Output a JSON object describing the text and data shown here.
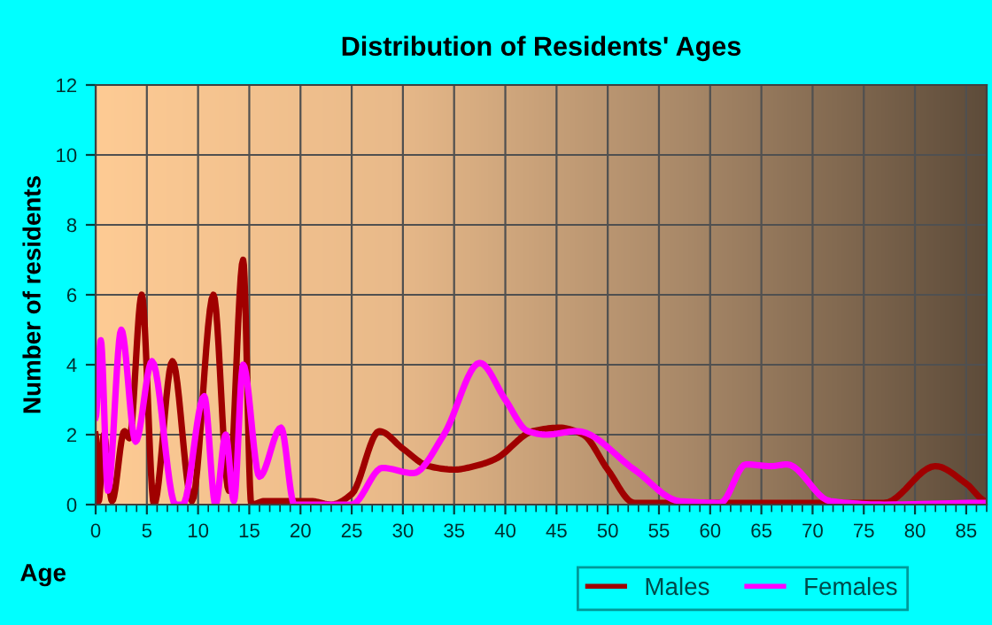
{
  "chart_data": {
    "type": "line",
    "title": "Distribution of Residents' Ages",
    "xlabel": "Age",
    "ylabel": "Number of residents",
    "xlim": [
      0,
      87
    ],
    "xticks": [
      0,
      5,
      10,
      15,
      20,
      25,
      30,
      35,
      40,
      45,
      50,
      55,
      60,
      65,
      70,
      75,
      80,
      85
    ],
    "ylim": [
      0,
      12
    ],
    "yticks": [
      0,
      2,
      4,
      6,
      8,
      10,
      12
    ],
    "grid": true,
    "legend": "bottom right",
    "series": [
      {
        "name": "Males",
        "color": "#a00000",
        "x": [
          0,
          0.3,
          0.8,
          1.6,
          2.8,
          3.3,
          4.5,
          5.7,
          7.5,
          9.4,
          11.5,
          13,
          14.4,
          15.2,
          16.5,
          21,
          23,
          25,
          27.7,
          30,
          32.5,
          35,
          37,
          39,
          42.7,
          45.3,
          47.6,
          50,
          52.6,
          76,
          77,
          82,
          85,
          87
        ],
        "values": [
          2,
          0.1,
          2,
          0.1,
          2.1,
          1.9,
          6,
          0,
          4.1,
          0.1,
          6,
          0.4,
          7,
          0,
          0.1,
          0.1,
          0,
          0.3,
          2.1,
          1.6,
          1.1,
          1.0,
          1.1,
          1.3,
          2.1,
          2.2,
          2.0,
          1.0,
          0.05,
          0.05,
          0.05,
          1.1,
          0.6,
          0.1
        ]
      },
      {
        "name": "Females",
        "color": "#ff00ff",
        "x": [
          0,
          0.5,
          1.2,
          2.5,
          3.9,
          5.5,
          7.8,
          8.5,
          10.6,
          11.7,
          12.7,
          13.5,
          14.4,
          16,
          18.1,
          19.4,
          25,
          28,
          31,
          34,
          37.5,
          40,
          42.2,
          44,
          47,
          52.6,
          57,
          61,
          63.5,
          66,
          67.5,
          71.7,
          77,
          87
        ],
        "values": [
          2.5,
          4.7,
          0.4,
          5,
          1.8,
          4.1,
          0,
          0,
          3.1,
          0,
          2.0,
          0.1,
          4,
          0.8,
          2.2,
          0,
          0,
          1.05,
          0.9,
          2.0,
          4.05,
          3.0,
          2.1,
          2.0,
          2.1,
          1.0,
          0.1,
          0.05,
          1.15,
          1.1,
          1.15,
          0.1,
          0,
          0.05
        ]
      }
    ]
  }
}
